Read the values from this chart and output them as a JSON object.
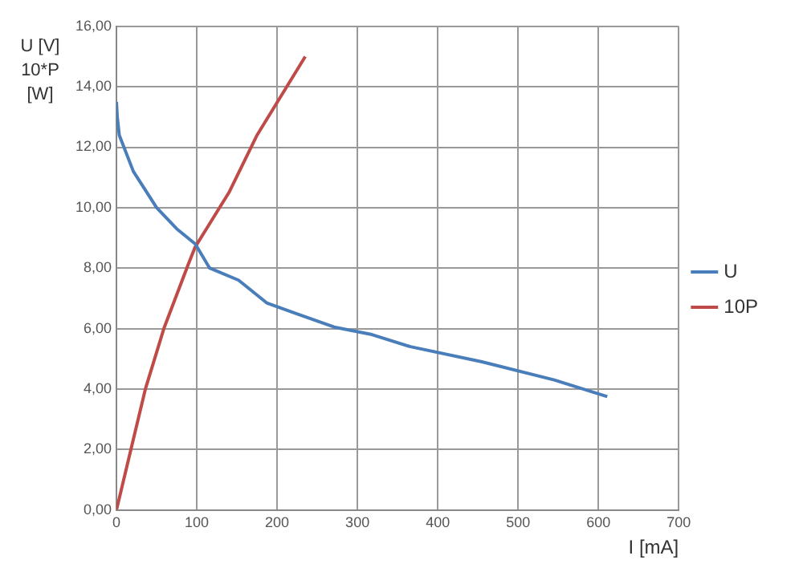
{
  "chart_data": {
    "type": "line",
    "ylabel": "U [V] 10*P [W]",
    "xlabel": "I [mA]",
    "xlim": [
      0,
      700
    ],
    "xticks": [
      0,
      100,
      200,
      300,
      400,
      500,
      600,
      700
    ],
    "ylim": [
      0,
      16
    ],
    "yticks": [
      {
        "value": 0,
        "label": "0,00"
      },
      {
        "value": 2,
        "label": "2,00"
      },
      {
        "value": 4,
        "label": "4,00"
      },
      {
        "value": 6,
        "label": "6,00"
      },
      {
        "value": 8,
        "label": "8,00"
      },
      {
        "value": 10,
        "label": "10,00"
      },
      {
        "value": 12,
        "label": "12,00"
      },
      {
        "value": 14,
        "label": "14,00"
      },
      {
        "value": 16,
        "label": "16,00"
      }
    ],
    "grid": true,
    "legend": "right",
    "marker": "none",
    "line_style": "solid",
    "series": [
      {
        "name": "U",
        "color": "#4a7ebb",
        "x": [
          0,
          1,
          3.5,
          21,
          50,
          75,
          98,
          116,
          152,
          187,
          223,
          271,
          318,
          366,
          455,
          545,
          611
        ],
        "values": [
          13.5,
          13,
          12.4,
          11.2,
          10,
          9.3,
          8.8,
          8,
          7.6,
          6.85,
          6.5,
          6.05,
          5.8,
          5.4,
          4.9,
          4.3,
          3.75
        ]
      },
      {
        "name": "10P",
        "color": "#be4b48",
        "x": [
          0,
          18,
          36,
          59,
          89,
          98,
          140,
          175,
          235
        ],
        "values": [
          0,
          2,
          4,
          6,
          8.1,
          8.7,
          10.5,
          12.4,
          15
        ]
      }
    ]
  }
}
